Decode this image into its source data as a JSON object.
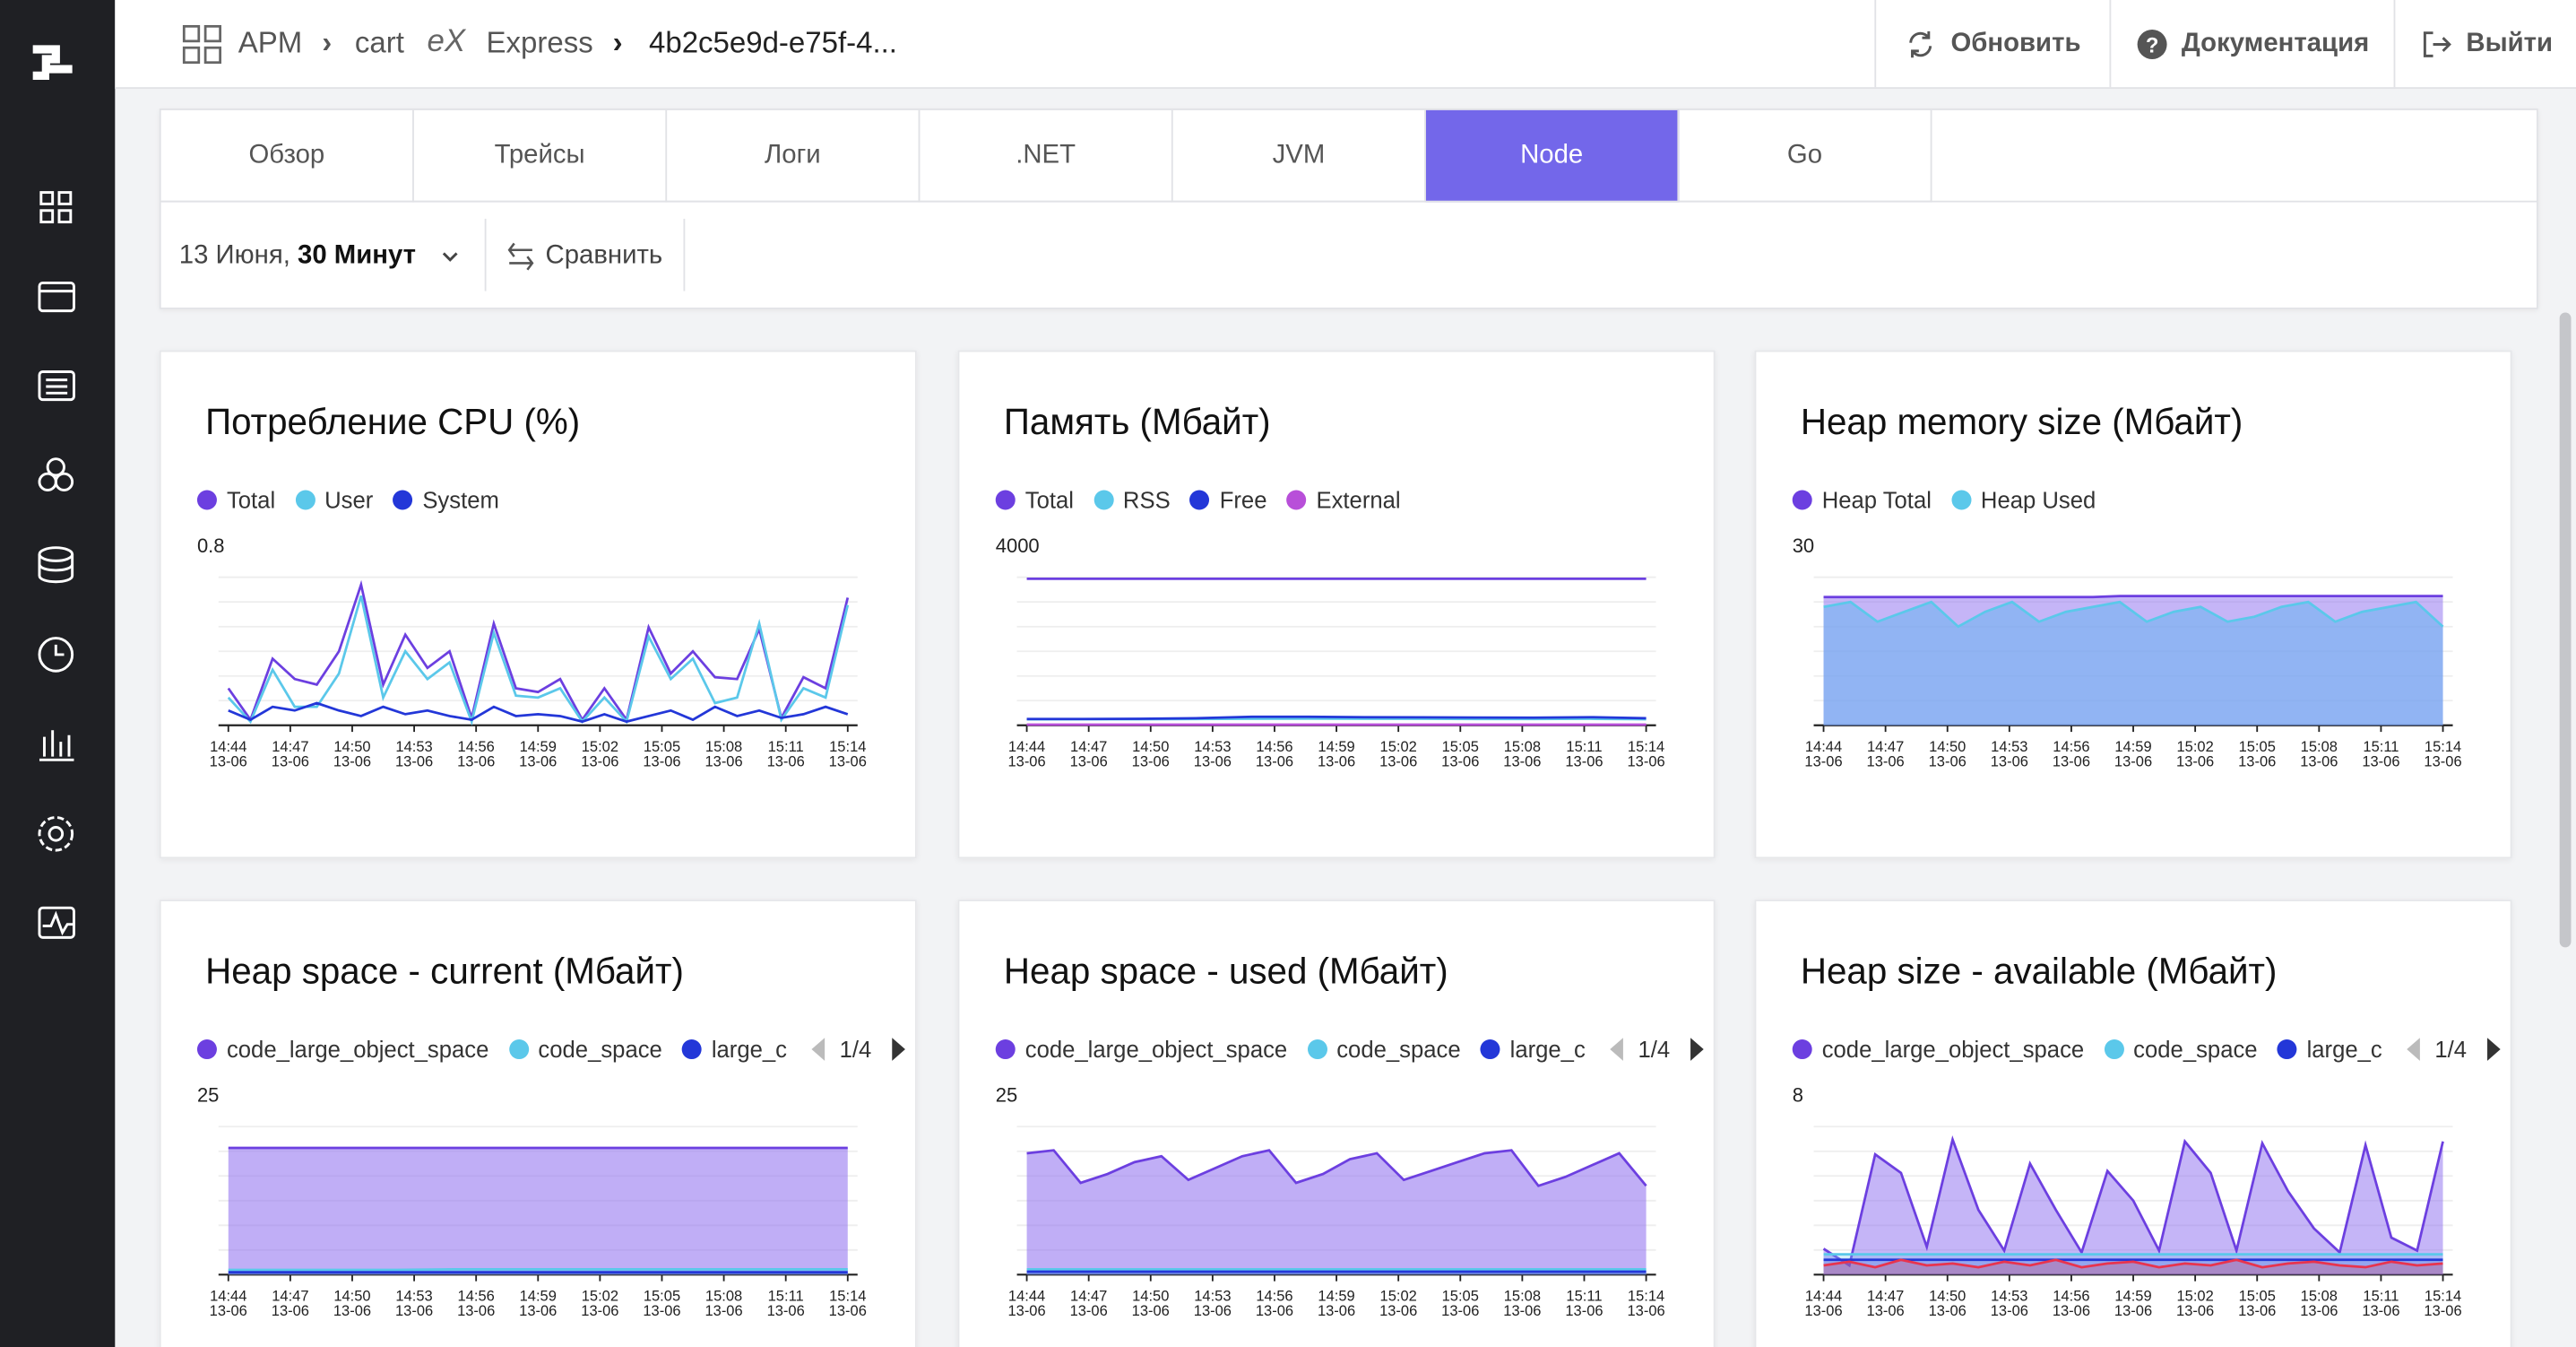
{
  "header": {
    "breadcrumb": [
      "APM",
      "cart",
      "Express",
      "4b2c5e9d-e75f-4..."
    ],
    "buttons": [
      "Обновить",
      "Документация",
      "Выйти"
    ]
  },
  "tabs": [
    "Обзор",
    "Трейсы",
    "Логи",
    ".NET",
    "JVM",
    "Node",
    "Go"
  ],
  "active_tab": 5,
  "filter": {
    "date": "13 Июня,",
    "range": "30 Минут",
    "compare": "Сравнить"
  },
  "chart_data": [
    {
      "type": "line",
      "title": "Потребление CPU (%)",
      "ylim": [
        0,
        0.8
      ],
      "yticks": [
        0.8
      ],
      "xticks": [
        "14:44",
        "14:47",
        "14:50",
        "14:53",
        "14:56",
        "14:59",
        "15:02",
        "15:05",
        "15:08",
        "15:11",
        "15:14"
      ],
      "xtick_dates": [
        "13-06",
        "13-06",
        "13-06",
        "13-06",
        "13-06",
        "13-06",
        "13-06",
        "13-06",
        "13-06",
        "13-06",
        "13-06"
      ],
      "series": [
        {
          "name": "Total",
          "color": "#6c3fe0",
          "values": [
            0.2,
            0.03,
            0.36,
            0.25,
            0.22,
            0.4,
            0.76,
            0.22,
            0.49,
            0.31,
            0.4,
            0.04,
            0.55,
            0.2,
            0.18,
            0.25,
            0.03,
            0.2,
            0.03,
            0.53,
            0.28,
            0.4,
            0.26,
            0.25,
            0.52,
            0.04,
            0.26,
            0.2,
            0.69
          ]
        },
        {
          "name": "User",
          "color": "#5bc8ea",
          "values": [
            0.15,
            0.02,
            0.3,
            0.1,
            0.1,
            0.28,
            0.7,
            0.15,
            0.4,
            0.25,
            0.34,
            0.02,
            0.5,
            0.16,
            0.15,
            0.2,
            0.02,
            0.15,
            0.02,
            0.48,
            0.25,
            0.36,
            0.12,
            0.15,
            0.55,
            0.03,
            0.2,
            0.15,
            0.65
          ]
        },
        {
          "name": "System",
          "color": "#2337d8",
          "values": [
            0.08,
            0.03,
            0.1,
            0.08,
            0.12,
            0.08,
            0.05,
            0.1,
            0.06,
            0.08,
            0.05,
            0.03,
            0.1,
            0.05,
            0.06,
            0.05,
            0.02,
            0.06,
            0.02,
            0.05,
            0.08,
            0.03,
            0.1,
            0.05,
            0.08,
            0.04,
            0.06,
            0.1,
            0.06
          ]
        }
      ]
    },
    {
      "type": "line",
      "title": "Память (Мбайт)",
      "ylim": [
        0,
        4000
      ],
      "yticks": [
        4000
      ],
      "xticks": [
        "14:44",
        "14:47",
        "14:50",
        "14:53",
        "14:56",
        "14:59",
        "15:02",
        "15:05",
        "15:08",
        "15:11",
        "15:14"
      ],
      "xtick_dates": [
        "13-06",
        "13-06",
        "13-06",
        "13-06",
        "13-06",
        "13-06",
        "13-06",
        "13-06",
        "13-06",
        "13-06",
        "13-06"
      ],
      "series": [
        {
          "name": "Total",
          "color": "#6c3fe0",
          "values": [
            3960,
            3960,
            3960,
            3960,
            3960,
            3960,
            3960,
            3960,
            3960,
            3960,
            3960,
            3960
          ]
        },
        {
          "name": "RSS",
          "color": "#5bc8ea",
          "values": [
            160,
            165,
            165,
            170,
            175,
            180,
            175,
            175,
            170,
            170,
            175,
            165
          ]
        },
        {
          "name": "Free",
          "color": "#2337d8",
          "values": [
            170,
            170,
            175,
            190,
            230,
            230,
            220,
            215,
            210,
            205,
            220,
            190
          ]
        },
        {
          "name": "External",
          "color": "#b84fd9",
          "values": [
            20,
            20,
            20,
            20,
            20,
            20,
            20,
            20,
            20,
            20,
            20,
            20
          ]
        }
      ]
    },
    {
      "type": "area",
      "title": "Heap memory size (Мбайт)",
      "ylim": [
        0,
        30
      ],
      "yticks": [
        30
      ],
      "xticks": [
        "14:44",
        "14:47",
        "14:50",
        "14:53",
        "14:56",
        "14:59",
        "15:02",
        "15:05",
        "15:08",
        "15:11",
        "15:14"
      ],
      "xtick_dates": [
        "13-06",
        "13-06",
        "13-06",
        "13-06",
        "13-06",
        "13-06",
        "13-06",
        "13-06",
        "13-06",
        "13-06",
        "13-06"
      ],
      "series": [
        {
          "name": "Heap Total",
          "color": "#6c3fe0",
          "fill": "rgba(150,120,240,0.55)",
          "values": [
            26,
            26,
            26,
            26,
            26,
            26,
            26,
            26,
            26,
            26,
            26,
            26.2,
            26.2,
            26.2,
            26.2,
            26.2,
            26.2,
            26.2,
            26.2,
            26.2,
            26.2,
            26.2,
            26.2,
            26.2
          ]
        },
        {
          "name": "Heap Used",
          "color": "#5bc8ea",
          "fill": "rgba(110,180,240,0.6)",
          "values": [
            24,
            25,
            21,
            23,
            25,
            20,
            23,
            25,
            21,
            23,
            24,
            25,
            21,
            23,
            24,
            21,
            22,
            24,
            25,
            21,
            23,
            24,
            25,
            20
          ]
        }
      ]
    },
    {
      "type": "area",
      "title": "Heap space - current (Мбайт)",
      "legend_page": "1/4",
      "ylim": [
        0,
        25
      ],
      "yticks": [
        25
      ],
      "xticks": [
        "14:44",
        "14:47",
        "14:50",
        "14:53",
        "14:56",
        "14:59",
        "15:02",
        "15:05",
        "15:08",
        "15:11",
        "15:14"
      ],
      "xtick_dates": [
        "13-06",
        "13-06",
        "13-06",
        "13-06",
        "13-06",
        "13-06",
        "13-06",
        "13-06",
        "13-06",
        "13-06",
        "13-06"
      ],
      "series": [
        {
          "name": "code_large_object_space",
          "color": "#6c3fe0",
          "fill": "rgba(150,120,240,0.6)",
          "values": [
            21.4,
            21.4,
            21.4,
            21.4,
            21.4,
            21.4,
            21.4,
            21.4,
            21.4,
            21.4,
            21.4,
            21.4
          ]
        },
        {
          "name": "code_space",
          "color": "#5bc8ea",
          "fill": "rgba(110,200,240,0.4)",
          "values": [
            0.8,
            0.8,
            0.8,
            0.8,
            0.9,
            0.9,
            0.9,
            0.9,
            0.9,
            0.9,
            0.9,
            0.9
          ]
        },
        {
          "name": "large_c",
          "color": "#2337d8",
          "fill": "rgba(35,55,216,0.2)",
          "values": [
            0.4,
            0.4,
            0.4,
            0.4,
            0.4,
            0.4,
            0.4,
            0.4,
            0.4,
            0.4,
            0.4,
            0.4
          ]
        }
      ]
    },
    {
      "type": "area",
      "title": "Heap space - used (Мбайт)",
      "legend_page": "1/4",
      "ylim": [
        0,
        25
      ],
      "yticks": [
        25
      ],
      "xticks": [
        "14:44",
        "14:47",
        "14:50",
        "14:53",
        "14:56",
        "14:59",
        "15:02",
        "15:05",
        "15:08",
        "15:11",
        "15:14"
      ],
      "xtick_dates": [
        "13-06",
        "13-06",
        "13-06",
        "13-06",
        "13-06",
        "13-06",
        "13-06",
        "13-06",
        "13-06",
        "13-06",
        "13-06"
      ],
      "series": [
        {
          "name": "code_large_object_space",
          "color": "#6c3fe0",
          "fill": "rgba(150,120,240,0.6)",
          "values": [
            20.5,
            21,
            15.5,
            17,
            19,
            20,
            16,
            18,
            20,
            21,
            15.5,
            17,
            19.5,
            20.5,
            16,
            17.5,
            19,
            20.5,
            21,
            15,
            16.5,
            18.5,
            20.5,
            15
          ]
        },
        {
          "name": "code_space",
          "color": "#5bc8ea",
          "fill": "rgba(110,200,240,0.4)",
          "values": [
            0.9,
            0.9,
            0.9,
            0.9,
            0.9,
            0.9,
            0.9,
            0.9,
            0.9,
            0.9,
            0.9,
            0.9,
            0.9,
            0.9,
            0.9,
            0.9,
            0.9,
            0.9,
            0.9,
            0.9,
            0.9,
            0.9,
            0.9,
            0.9
          ]
        },
        {
          "name": "large_c",
          "color": "#2337d8",
          "fill": "rgba(35,55,216,0.2)",
          "values": [
            0.5,
            0.5,
            0.5,
            0.5,
            0.5,
            0.5,
            0.5,
            0.5,
            0.5,
            0.5,
            0.5,
            0.5,
            0.5,
            0.5,
            0.5,
            0.5,
            0.5,
            0.5,
            0.5,
            0.5,
            0.5,
            0.5,
            0.5,
            0.5
          ]
        }
      ]
    },
    {
      "type": "area",
      "title": "Heap size - available (Мбайт)",
      "legend_page": "1/4",
      "ylim": [
        0,
        8
      ],
      "yticks": [
        8
      ],
      "xticks": [
        "14:44",
        "14:47",
        "14:50",
        "14:53",
        "14:56",
        "14:59",
        "15:02",
        "15:05",
        "15:08",
        "15:11",
        "15:14"
      ],
      "xtick_dates": [
        "13-06",
        "13-06",
        "13-06",
        "13-06",
        "13-06",
        "13-06",
        "13-06",
        "13-06",
        "13-06",
        "13-06",
        "13-06"
      ],
      "series": [
        {
          "name": "code_large_object_space",
          "color": "#6c3fe0",
          "fill": "rgba(150,120,240,0.55)",
          "values": [
            1.4,
            0.5,
            6.5,
            5.5,
            1.5,
            7.3,
            3.5,
            1.3,
            6,
            3.5,
            1.2,
            5.6,
            4,
            1.3,
            7.2,
            5.5,
            1.3,
            7.1,
            4.5,
            2.5,
            1.2,
            7,
            2,
            1.3,
            7.2
          ]
        },
        {
          "name": "code_space",
          "color": "#5bc8ea",
          "fill": "rgba(110,200,240,0.3)",
          "values": [
            1.1,
            1.1,
            1.1,
            1.1,
            1.1,
            1.1,
            1.1,
            1.1,
            1.1,
            1.1,
            1.1,
            1.1,
            1.1,
            1.1,
            1.1,
            1.1,
            1.1,
            1.1,
            1.1,
            1.1,
            1.1,
            1.1,
            1.1,
            1.1,
            1.1
          ]
        },
        {
          "name": "large_c",
          "color": "#2337d8",
          "fill": "rgba(35,55,216,0.15)",
          "values": [
            0.8,
            0.8,
            0.8,
            0.8,
            0.8,
            0.8,
            0.8,
            0.8,
            0.8,
            0.8,
            0.8,
            0.8,
            0.8,
            0.8,
            0.8,
            0.8,
            0.8,
            0.8,
            0.8,
            0.8,
            0.8,
            0.8,
            0.8,
            0.8,
            0.8
          ]
        },
        {
          "color": "#e8344e",
          "fill": "rgba(232,52,78,0.25)",
          "values": [
            0.5,
            0.7,
            0.4,
            0.8,
            0.5,
            0.6,
            0.4,
            0.7,
            0.5,
            0.8,
            0.4,
            0.6,
            0.7,
            0.4,
            0.6,
            0.5,
            0.8,
            0.4,
            0.6,
            0.7,
            0.5,
            0.4,
            0.7,
            0.5,
            0.6
          ]
        }
      ]
    }
  ]
}
